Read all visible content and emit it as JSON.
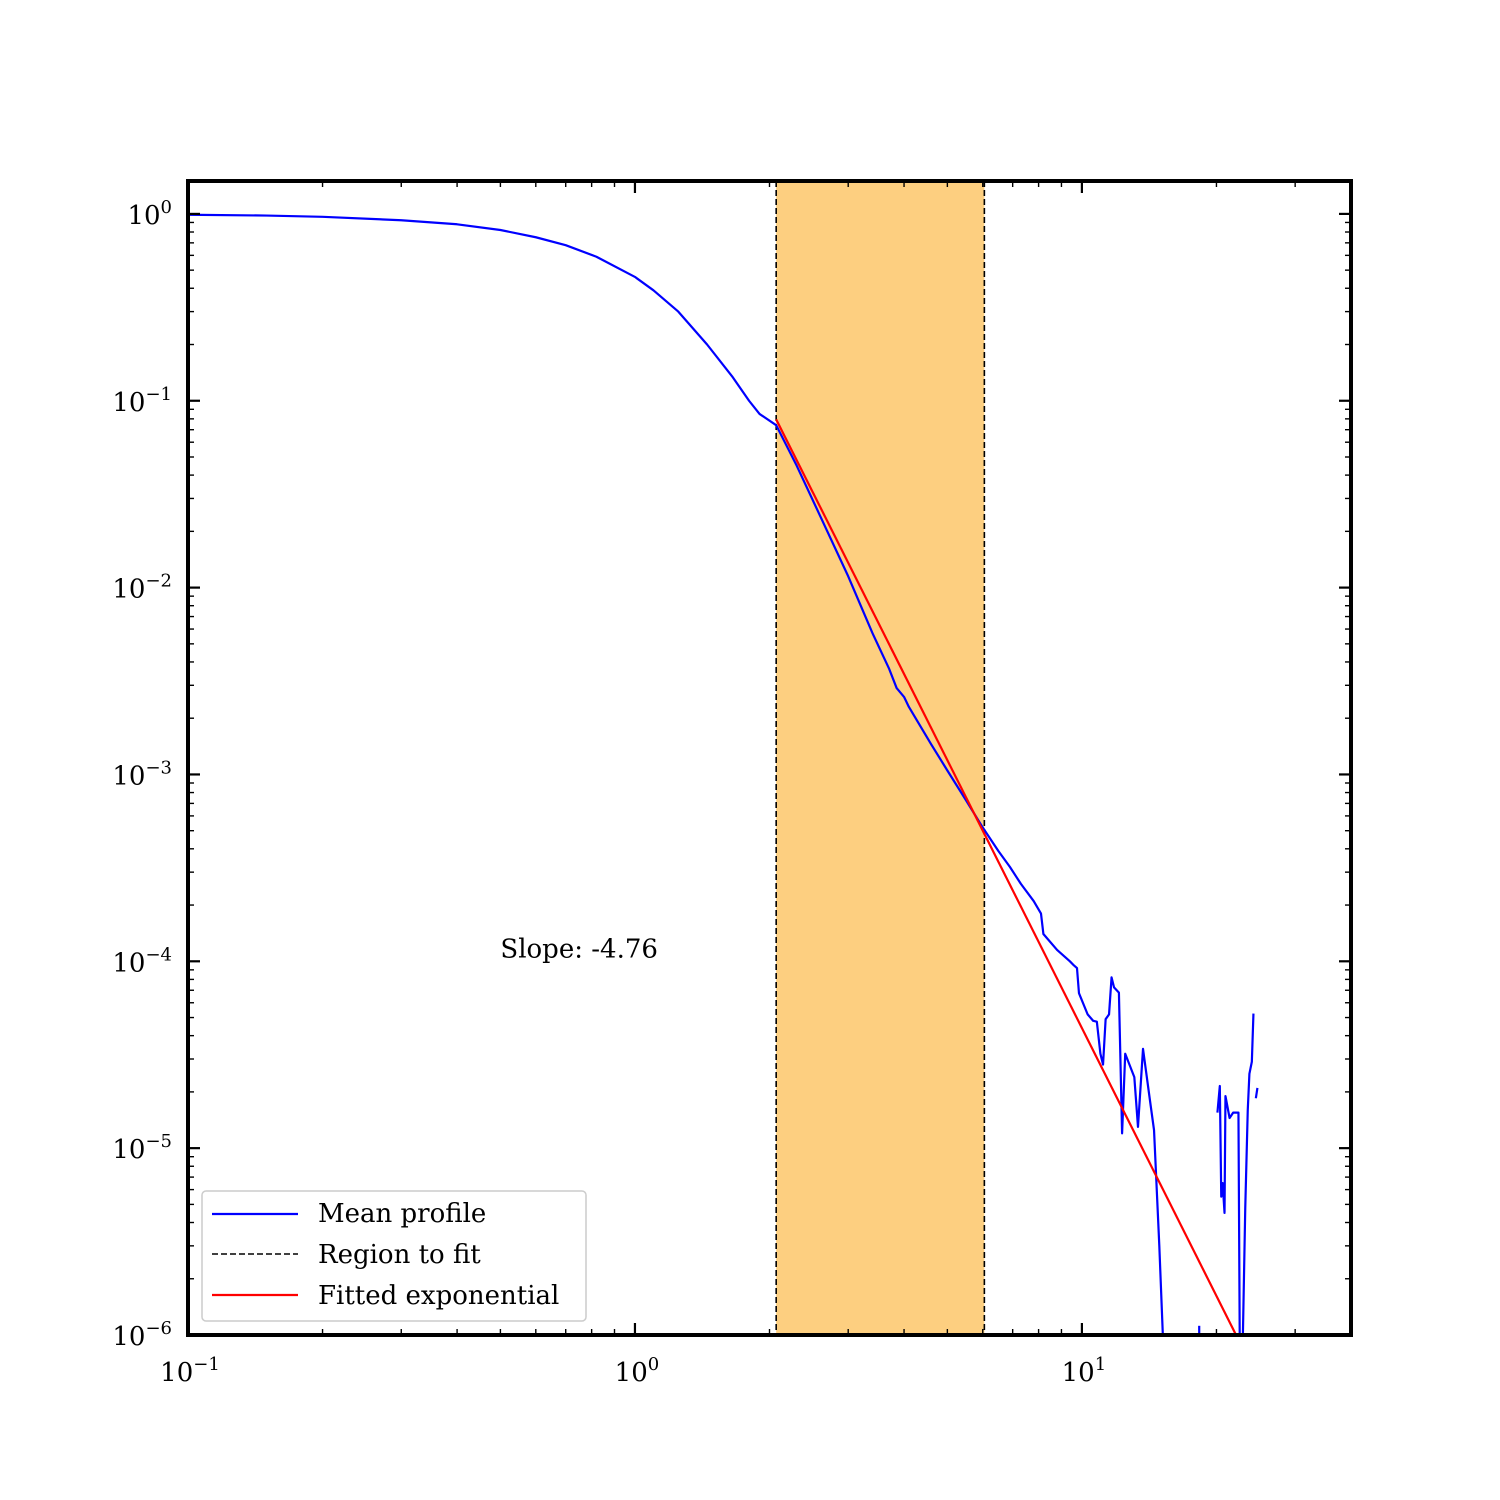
{
  "chart_data": {
    "type": "line",
    "title": "",
    "xlabel": "",
    "ylabel": "",
    "xscale": "log",
    "yscale": "log",
    "xlim": [
      0.1,
      40
    ],
    "ylim": [
      1e-06,
      1.5
    ],
    "grid": false,
    "legend_position": "lower-left",
    "x_ticks": [
      {
        "value": 0.1,
        "base": "10",
        "exp": "−1"
      },
      {
        "value": 1,
        "base": "10",
        "exp": "0"
      },
      {
        "value": 10,
        "base": "10",
        "exp": "1"
      }
    ],
    "y_ticks": [
      {
        "value": 1,
        "base": "10",
        "exp": "0"
      },
      {
        "value": 0.1,
        "base": "10",
        "exp": "−1"
      },
      {
        "value": 0.01,
        "base": "10",
        "exp": "−2"
      },
      {
        "value": 0.001,
        "base": "10",
        "exp": "−3"
      },
      {
        "value": 0.0001,
        "base": "10",
        "exp": "−4"
      },
      {
        "value": 1e-05,
        "base": "10",
        "exp": "−5"
      },
      {
        "value": 1e-06,
        "base": "10",
        "exp": "−6"
      }
    ],
    "fit_region": {
      "label": "Region to fit",
      "x_start": 2.07,
      "x_end": 6.05,
      "fill_color": "#fdcf80",
      "line_color": "#000000"
    },
    "annotation": {
      "text": "Slope: -4.76",
      "x": 0.5,
      "y": 0.000105
    },
    "series": [
      {
        "name": "Mean profile",
        "color": "#0000ff",
        "segments": [
          [
            [
              0.1,
              0.99
            ],
            [
              0.15,
              0.98
            ],
            [
              0.2,
              0.965
            ],
            [
              0.3,
              0.925
            ],
            [
              0.4,
              0.88
            ],
            [
              0.5,
              0.82
            ],
            [
              0.6,
              0.75
            ],
            [
              0.7,
              0.68
            ],
            [
              0.82,
              0.59
            ],
            [
              1.0,
              0.46
            ],
            [
              1.1,
              0.39
            ],
            [
              1.25,
              0.3
            ],
            [
              1.45,
              0.2
            ],
            [
              1.65,
              0.135
            ],
            [
              1.8,
              0.1
            ],
            [
              1.9,
              0.085
            ],
            [
              2.07,
              0.074
            ],
            [
              2.3,
              0.045
            ],
            [
              2.6,
              0.024
            ],
            [
              3.0,
              0.0115
            ],
            [
              3.4,
              0.0057
            ],
            [
              3.7,
              0.0037
            ],
            [
              3.85,
              0.0029
            ],
            [
              4.0,
              0.0026
            ],
            [
              4.1,
              0.0023
            ],
            [
              4.3,
              0.0019
            ],
            [
              4.6,
              0.00145
            ],
            [
              5.0,
              0.00105
            ],
            [
              5.5,
              0.00073
            ],
            [
              6.0,
              0.00052
            ],
            [
              6.5,
              0.00039
            ],
            [
              6.9,
              0.00032
            ],
            [
              7.3,
              0.00026
            ],
            [
              7.8,
              0.00021
            ],
            [
              8.1,
              0.00018
            ],
            [
              8.2,
              0.00014
            ],
            [
              8.8,
              0.000115
            ],
            [
              9.4,
              0.0001
            ],
            [
              9.6,
              9.5e-05
            ],
            [
              9.75,
              9.2e-05
            ],
            [
              9.85,
              6.75e-05
            ],
            [
              10.3,
              5.2e-05
            ],
            [
              10.6,
              4.8e-05
            ],
            [
              10.8,
              4.75e-05
            ],
            [
              11.0,
              3.2e-05
            ],
            [
              11.15,
              2.8e-05
            ],
            [
              11.3,
              4.9e-05
            ],
            [
              11.5,
              5.2e-05
            ],
            [
              11.65,
              8.2e-05
            ],
            [
              11.8,
              7.25e-05
            ],
            [
              12.1,
              6.8e-05
            ],
            [
              12.3,
              1.2e-05
            ],
            [
              12.5,
              3.2e-05
            ],
            [
              13.1,
              2.4e-05
            ],
            [
              13.35,
              1.3e-05
            ],
            [
              13.7,
              3.4e-05
            ],
            [
              14.2,
              1.8e-05
            ],
            [
              14.5,
              1.25e-05
            ],
            [
              14.9,
              3e-06
            ],
            [
              15.2,
              9e-07
            ]
          ],
          [
            [
              18.3,
              1.12e-06
            ],
            [
              18.3,
              9e-07
            ]
          ],
          [
            [
              20.1,
              1.55e-05
            ],
            [
              20.35,
              2.15e-05
            ],
            [
              20.5,
              5.5e-06
            ],
            [
              20.65,
              6.5e-06
            ],
            [
              20.85,
              4.5e-06
            ],
            [
              20.95,
              1.9e-05
            ],
            [
              21.4,
              1.45e-05
            ],
            [
              21.8,
              1.55e-05
            ],
            [
              22.4,
              1.55e-05
            ],
            [
              22.55,
              9e-07
            ]
          ],
          [
            [
              22.9,
              9e-07
            ],
            [
              23.2,
              4.8e-06
            ],
            [
              23.5,
              1.6e-05
            ],
            [
              23.7,
              2.5e-05
            ],
            [
              24.0,
              2.9e-05
            ],
            [
              24.2,
              5.25e-05
            ]
          ],
          [
            [
              24.5,
              1.85e-05
            ],
            [
              24.7,
              2.1e-05
            ]
          ]
        ]
      },
      {
        "name": "Fitted exponential",
        "color": "#ff0000",
        "segments": [
          [
            [
              2.07,
              0.0795
            ],
            [
              40,
              5.96e-08
            ]
          ]
        ]
      }
    ],
    "legend": [
      {
        "label": "Mean profile",
        "style": "solid",
        "color": "#0000ff"
      },
      {
        "label": "Region to fit",
        "style": "dashed",
        "color": "#000000"
      },
      {
        "label": "Fitted exponential",
        "style": "solid",
        "color": "#ff0000"
      }
    ]
  }
}
